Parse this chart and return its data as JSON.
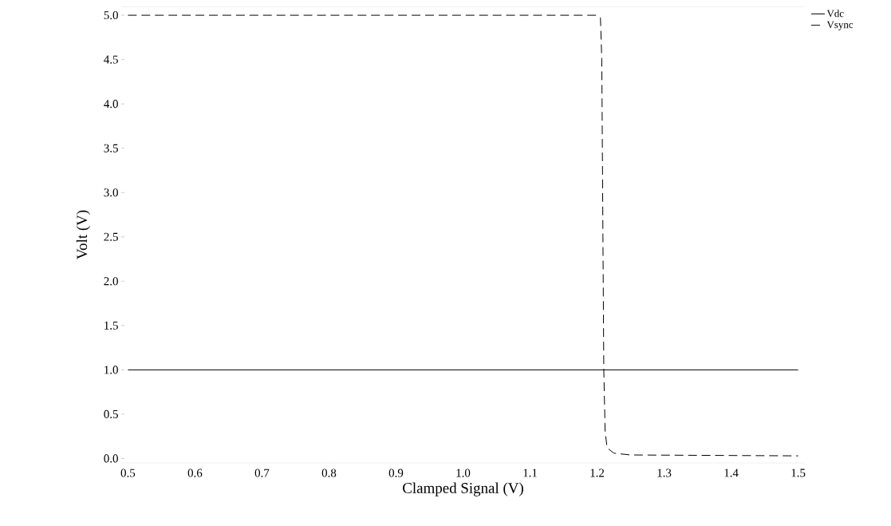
{
  "chart_data": {
    "type": "line",
    "xlabel": "Clamped Signal (V)",
    "ylabel": "Volt (V)",
    "xlim": [
      0.49,
      1.51
    ],
    "ylim": [
      -0.05,
      5.1
    ],
    "xticks": [
      {
        "value": 0.5,
        "label": "0.5"
      },
      {
        "value": 0.6,
        "label": "0.6"
      },
      {
        "value": 0.7,
        "label": "0.7"
      },
      {
        "value": 0.8,
        "label": "0.8"
      },
      {
        "value": 0.9,
        "label": "0.9"
      },
      {
        "value": 1.0,
        "label": "1.0"
      },
      {
        "value": 1.1,
        "label": "1.1"
      },
      {
        "value": 1.2,
        "label": "1.2"
      },
      {
        "value": 1.3,
        "label": "1.3"
      },
      {
        "value": 1.4,
        "label": "1.4"
      },
      {
        "value": 1.5,
        "label": "1.5"
      }
    ],
    "yticks": [
      {
        "value": 0,
        "label": "0.0"
      },
      {
        "value": 0.5,
        "label": "0.5"
      },
      {
        "value": 1.0,
        "label": "1.0"
      },
      {
        "value": 1.5,
        "label": "1.5"
      },
      {
        "value": 2.0,
        "label": "2.0"
      },
      {
        "value": 2.5,
        "label": "2.5"
      },
      {
        "value": 3.0,
        "label": "3.0"
      },
      {
        "value": 3.5,
        "label": "3.5"
      },
      {
        "value": 4.0,
        "label": "4.0"
      },
      {
        "value": 4.5,
        "label": "4.5"
      },
      {
        "value": 5.0,
        "label": "5.0"
      }
    ],
    "grid": false,
    "legend": "top right",
    "marker": "none",
    "series": [
      {
        "name": "Vdc",
        "color": "#000000",
        "line_style": "solid",
        "x": [
          0.5,
          1.5
        ],
        "values": [
          1.0,
          1.0
        ]
      },
      {
        "name": "Vsync",
        "color": "#000000",
        "line_style": "dashed",
        "x": [
          0.5,
          1.2,
          1.205,
          1.207,
          1.21,
          1.212,
          1.215,
          1.225,
          1.25,
          1.5
        ],
        "values": [
          5.0,
          5.0,
          4.97,
          4.5,
          1.0,
          0.3,
          0.12,
          0.06,
          0.04,
          0.03
        ]
      }
    ]
  }
}
